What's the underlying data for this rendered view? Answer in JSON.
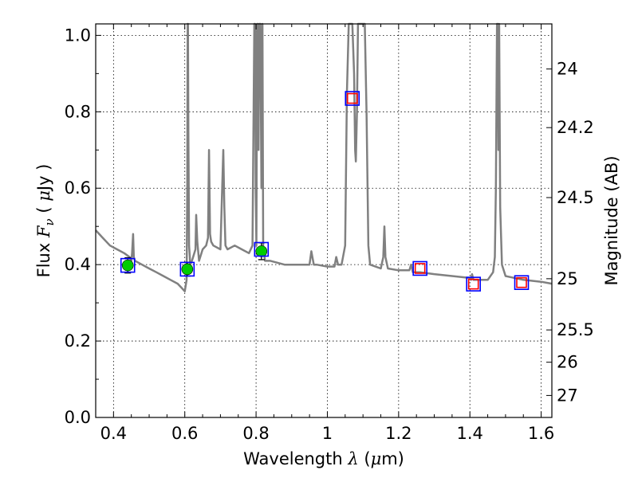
{
  "chart_data": {
    "type": "line",
    "xlabel_text": "Wavelength",
    "xlabel_symbol": "λ",
    "xlabel_unit_open": " (",
    "xlabel_unit_mu": "μ",
    "xlabel_unit_rest": "m)",
    "ylabel_left_text": "Flux",
    "ylabel_left_symbol": "F",
    "ylabel_left_subscript": "ν",
    "ylabel_left_unit_open": " ( ",
    "ylabel_left_unit_mu": "μ",
    "ylabel_left_unit_rest": "Jy )",
    "ylabel_right": "Magnitude (AB)",
    "xlim": [
      0.35,
      1.63
    ],
    "ylim": [
      0.0,
      1.03
    ],
    "grid": true,
    "x_ticks": [
      0.4,
      0.6,
      0.8,
      1.0,
      1.2,
      1.4,
      1.6
    ],
    "x_tick_labels": [
      "0.4",
      "0.6",
      "0.8",
      "1",
      "1.2",
      "1.4",
      "1.6"
    ],
    "y_ticks": [
      0.0,
      0.2,
      0.4,
      0.6,
      0.8,
      1.0
    ],
    "y_tick_labels": [
      "0.0",
      "0.2",
      "0.4",
      "0.6",
      "0.8",
      "1.0"
    ],
    "right_ticks": [
      {
        "label": "24",
        "mag": 24.0
      },
      {
        "label": "24.2",
        "mag": 24.2
      },
      {
        "label": "24.5",
        "mag": 24.5
      },
      {
        "label": "25",
        "mag": 25.0
      },
      {
        "label": "25.5",
        "mag": 25.5
      },
      {
        "label": "26",
        "mag": 26.0
      },
      {
        "label": "27",
        "mag": 27.0
      }
    ],
    "series": [
      {
        "kind": "model-spectrum",
        "color": "#808080",
        "x": [
          0.35,
          0.37,
          0.39,
          0.41,
          0.43,
          0.445,
          0.45,
          0.452,
          0.455,
          0.457,
          0.46,
          0.48,
          0.5,
          0.52,
          0.54,
          0.56,
          0.58,
          0.59,
          0.6,
          0.605,
          0.607,
          0.608,
          0.609,
          0.61,
          0.612,
          0.614,
          0.615,
          0.62,
          0.63,
          0.632,
          0.635,
          0.64,
          0.65,
          0.66,
          0.665,
          0.668,
          0.671,
          0.674,
          0.68,
          0.7,
          0.705,
          0.708,
          0.711,
          0.714,
          0.72,
          0.74,
          0.76,
          0.78,
          0.79,
          0.795,
          0.797,
          0.799,
          0.801,
          0.803,
          0.805,
          0.807,
          0.809,
          0.812,
          0.815,
          0.818,
          0.82,
          0.825,
          0.84,
          0.86,
          0.88,
          0.9,
          0.92,
          0.94,
          0.95,
          0.955,
          0.958,
          0.962,
          0.97,
          1.0,
          1.02,
          1.025,
          1.03,
          1.04,
          1.05,
          1.055,
          1.06,
          1.065,
          1.07,
          1.075,
          1.078,
          1.08,
          1.083,
          1.086,
          1.09,
          1.095,
          1.1,
          1.105,
          1.11,
          1.115,
          1.12,
          1.15,
          1.157,
          1.16,
          1.163,
          1.17,
          1.2,
          1.23,
          1.235,
          1.24,
          1.26,
          1.3,
          1.35,
          1.4,
          1.403,
          1.406,
          1.41,
          1.415,
          1.45,
          1.465,
          1.47,
          1.473,
          1.476,
          1.478,
          1.48,
          1.482,
          1.485,
          1.49,
          1.5,
          1.55,
          1.6,
          1.63
        ],
        "y": [
          0.49,
          0.47,
          0.45,
          0.44,
          0.43,
          0.42,
          0.41,
          0.43,
          0.48,
          0.42,
          0.41,
          0.4,
          0.39,
          0.38,
          0.37,
          0.36,
          0.35,
          0.34,
          0.33,
          0.36,
          0.6,
          1.03,
          1.03,
          0.75,
          0.45,
          0.42,
          0.4,
          0.41,
          0.44,
          0.53,
          0.46,
          0.41,
          0.44,
          0.45,
          0.47,
          0.7,
          0.48,
          0.46,
          0.45,
          0.44,
          0.6,
          0.7,
          0.55,
          0.45,
          0.44,
          0.45,
          0.44,
          0.43,
          0.45,
          1.03,
          1.03,
          0.6,
          0.45,
          1.03,
          1.03,
          0.7,
          1.03,
          1.03,
          0.6,
          1.03,
          0.45,
          0.41,
          0.41,
          0.405,
          0.4,
          0.4,
          0.4,
          0.4,
          0.4,
          0.435,
          0.42,
          0.4,
          0.4,
          0.395,
          0.395,
          0.42,
          0.4,
          0.4,
          0.45,
          0.85,
          1.03,
          1.03,
          1.03,
          0.9,
          0.7,
          0.67,
          0.8,
          1.03,
          1.03,
          1.03,
          1.03,
          1.03,
          0.8,
          0.45,
          0.4,
          0.39,
          0.42,
          0.5,
          0.42,
          0.39,
          0.385,
          0.385,
          0.4,
          0.38,
          0.38,
          0.375,
          0.37,
          0.365,
          0.36,
          0.375,
          0.36,
          0.36,
          0.36,
          0.38,
          0.42,
          0.6,
          1.03,
          1.03,
          0.7,
          1.03,
          0.55,
          0.4,
          0.37,
          0.36,
          0.355,
          0.35
        ]
      },
      {
        "kind": "observed-flux",
        "marker": "circle",
        "color": "#00cc00",
        "x": [
          0.44,
          0.607,
          0.815
        ],
        "y": [
          0.398,
          0.388,
          0.435
        ],
        "yerr": [
          0.02,
          0.018,
          0.022
        ]
      },
      {
        "kind": "model-flux-box",
        "marker": "square",
        "color": "#0000ff",
        "x": [
          0.44,
          0.607,
          0.815,
          1.07,
          1.26,
          1.41,
          1.545
        ],
        "y": [
          0.398,
          0.388,
          0.44,
          0.835,
          0.39,
          0.349,
          0.353
        ]
      },
      {
        "kind": "model-flux-box-inner",
        "marker": "square",
        "color": "#ff0000",
        "x": [
          1.07,
          1.26,
          1.41,
          1.545
        ],
        "y": [
          0.835,
          0.39,
          0.349,
          0.353
        ]
      }
    ]
  }
}
